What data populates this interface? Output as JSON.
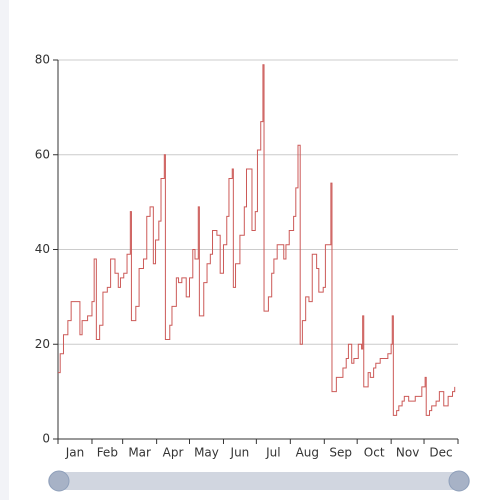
{
  "chart_data": {
    "type": "line",
    "step": true,
    "color": "#cc5a58",
    "grid": true,
    "x": [
      0,
      2,
      5,
      9,
      12,
      20,
      22,
      27,
      31,
      33,
      35,
      38,
      41,
      45,
      48,
      52,
      55,
      57,
      60,
      63,
      66,
      67,
      71,
      74,
      78,
      81,
      84,
      87,
      89,
      92,
      94,
      97,
      98,
      102,
      104,
      108,
      110,
      113,
      117,
      120,
      123,
      125,
      128,
      129,
      133,
      136,
      139,
      141,
      145,
      148,
      151,
      154,
      156,
      159,
      160,
      162,
      166,
      170,
      172,
      177,
      180,
      182,
      185,
      187,
      188,
      192,
      195,
      197,
      200,
      203,
      206,
      208,
      211,
      215,
      217,
      219,
      221,
      223,
      226,
      229,
      232,
      236,
      238,
      242,
      244,
      249,
      250,
      254,
      258,
      260,
      263,
      265,
      268,
      270,
      274,
      277,
      278,
      279,
      283,
      285,
      288,
      290,
      294,
      299,
      301,
      304,
      305,
      306,
      309,
      311,
      314,
      316,
      320,
      322,
      326,
      329,
      332,
      335,
      336,
      339,
      341,
      345,
      348,
      352,
      356,
      360,
      362
    ],
    "values": [
      14,
      18,
      22,
      25,
      29,
      22,
      25,
      26,
      29,
      38,
      21,
      24,
      31,
      32,
      38,
      35,
      32,
      34,
      35,
      39,
      48,
      25,
      28,
      36,
      38,
      47,
      49,
      37,
      42,
      46,
      55,
      60,
      21,
      24,
      28,
      34,
      33,
      34,
      30,
      34,
      40,
      38,
      49,
      26,
      33,
      37,
      39,
      44,
      43,
      35,
      41,
      47,
      55,
      57,
      32,
      37,
      43,
      49,
      57,
      44,
      48,
      61,
      67,
      79,
      27,
      30,
      35,
      38,
      41,
      41,
      38,
      41,
      44,
      47,
      53,
      62,
      20,
      25,
      30,
      29,
      39,
      36,
      31,
      32,
      41,
      54,
      10,
      13,
      13,
      15,
      17,
      20,
      16,
      17,
      20,
      19,
      26,
      11,
      14,
      13,
      15,
      16,
      17,
      17,
      18,
      20,
      26,
      5,
      6,
      7,
      8,
      9,
      8,
      8,
      9,
      9,
      11,
      13,
      5,
      6,
      7,
      8,
      10,
      7,
      9,
      10,
      11
    ],
    "xlim": [
      0,
      365
    ],
    "xticks": [
      {
        "value": 0,
        "label": "Jan"
      },
      {
        "value": 31,
        "label": "Feb"
      },
      {
        "value": 59,
        "label": "Mar"
      },
      {
        "value": 90,
        "label": "Apr"
      },
      {
        "value": 120,
        "label": "May"
      },
      {
        "value": 151,
        "label": "Jun"
      },
      {
        "value": 181,
        "label": "Jul"
      },
      {
        "value": 212,
        "label": "Aug"
      },
      {
        "value": 243,
        "label": "Sep"
      },
      {
        "value": 273,
        "label": "Oct"
      },
      {
        "value": 304,
        "label": "Nov"
      },
      {
        "value": 334,
        "label": "Dec"
      }
    ],
    "ylim": [
      0,
      80
    ],
    "yticks": [
      0,
      20,
      40,
      60,
      80
    ]
  }
}
